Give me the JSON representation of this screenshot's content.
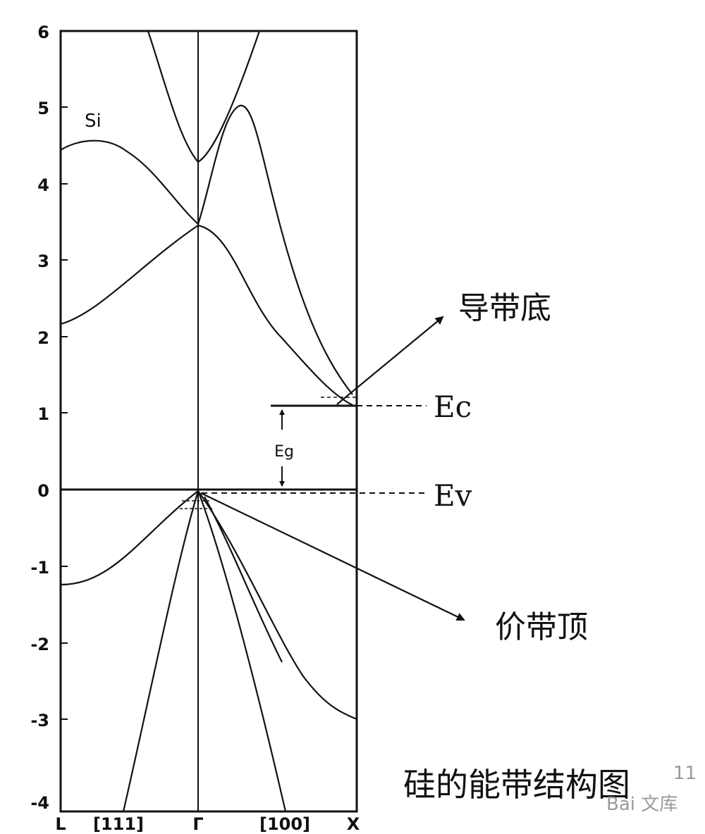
{
  "diagram": {
    "material_label": "Si",
    "y_ticks": [
      "6",
      "5",
      "4",
      "3",
      "2",
      "1",
      "0",
      "-1",
      "-2",
      "-3",
      "-4"
    ],
    "x_labels": [
      "L",
      "[111]",
      "Γ",
      "[100]",
      "X"
    ],
    "gap_label": "Eg",
    "ec_label": "Ec",
    "ev_label": "Ev",
    "cb_bottom_label": "导带底",
    "vb_top_label": "价带顶",
    "caption": "硅的能带结构图",
    "watermark_text": "Bai 文库",
    "watermark_partial": "11"
  }
}
